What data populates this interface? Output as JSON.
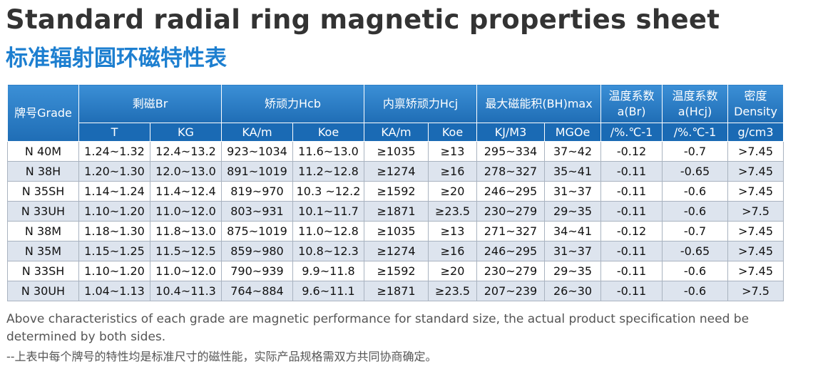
{
  "header": {
    "title": "Standard radial ring magnetic properties sheet",
    "subtitle": "标准辐射圆环磁特性表"
  },
  "table": {
    "head1": [
      {
        "text": "牌号Grade",
        "colspan": 1,
        "rowspan": 2
      },
      {
        "text": "剩磁Br",
        "colspan": 2,
        "rowspan": 1
      },
      {
        "text": "矫顽力Hcb",
        "colspan": 2,
        "rowspan": 1
      },
      {
        "text": "内禀矫顽力Hcj",
        "colspan": 2,
        "rowspan": 1
      },
      {
        "text": "最大磁能积(BH)max",
        "colspan": 2,
        "rowspan": 1
      },
      {
        "text": "温度系数\na(Br)",
        "colspan": 1,
        "rowspan": 1
      },
      {
        "text": "温度系数\na(Hcj)",
        "colspan": 1,
        "rowspan": 1
      },
      {
        "text": "密度\nDensity",
        "colspan": 1,
        "rowspan": 1
      }
    ],
    "head2": [
      "T",
      "KG",
      "KA/m",
      "Koe",
      "KA/m",
      "Koe",
      "KJ/M3",
      "MGOe",
      "/%.℃-1",
      "/%.℃-1",
      "g/cm3"
    ],
    "rows": [
      [
        "N 40M",
        "1.24~1.32",
        "12.4~13.2",
        "923~1034",
        "11.6~13.0",
        "≥1035",
        "≥13",
        "295~334",
        "37~42",
        "-0.12",
        "-0.7",
        ">7.45"
      ],
      [
        "N 38H",
        "1.20~1.30",
        "12.0~13.0",
        "891~1019",
        "11.2~12.8",
        "≥1274",
        "≥16",
        "278~327",
        "35~41",
        "-0.11",
        "-0.65",
        ">7.45"
      ],
      [
        "N 35SH",
        "1.14~1.24",
        "11.4~12.4",
        "819~970",
        "10.3 ~12.2",
        "≥1592",
        "≥20",
        "246~295",
        "31~37",
        "-0.11",
        "-0.6",
        ">7.45"
      ],
      [
        "N 33UH",
        "1.10~1.20",
        "11.0~12.0",
        "803~931",
        "10.1~11.7",
        "≥1871",
        "≥23.5",
        "230~279",
        "29~35",
        "-0.11",
        "-0.6",
        ">7.5"
      ],
      [
        "N 38M",
        "1.18~1.30",
        "11.8~13.0",
        "875~1019",
        "11.0~12.8",
        "≥1035",
        "≥13",
        "271~327",
        "34~41",
        "-0.12",
        "-0.7",
        ">7.45"
      ],
      [
        "N 35M",
        "1.15~1.25",
        "11.5~12.5",
        "859~980",
        "10.8~12.3",
        "≥1274",
        "≥16",
        "246~295",
        "31~37",
        "-0.11",
        "-0.65",
        ">7.45"
      ],
      [
        "N 33SH",
        "1.10~1.20",
        "11.0~12.0",
        "790~939",
        "9.9~11.8",
        "≥1592",
        "≥20",
        "230~279",
        "29~35",
        "-0.11",
        "-0.6",
        ">7.45"
      ],
      [
        "N 30UH",
        "1.04~1.13",
        "10.4~11.3",
        "764~884",
        "9.6~11.1",
        "≥1871",
        "≥23.5",
        "207~239",
        "26~30",
        "-0.11",
        "-0.6",
        ">7.5"
      ]
    ]
  },
  "footer": {
    "note_en": "Above characteristics of each grade are magnetic performance for standard size, the actual product specification need be determined by both sides.",
    "note_zh": "--上表中每个牌号的特性均是标准尺寸的磁性能，实际产品规格需双方共同协商确定。"
  }
}
